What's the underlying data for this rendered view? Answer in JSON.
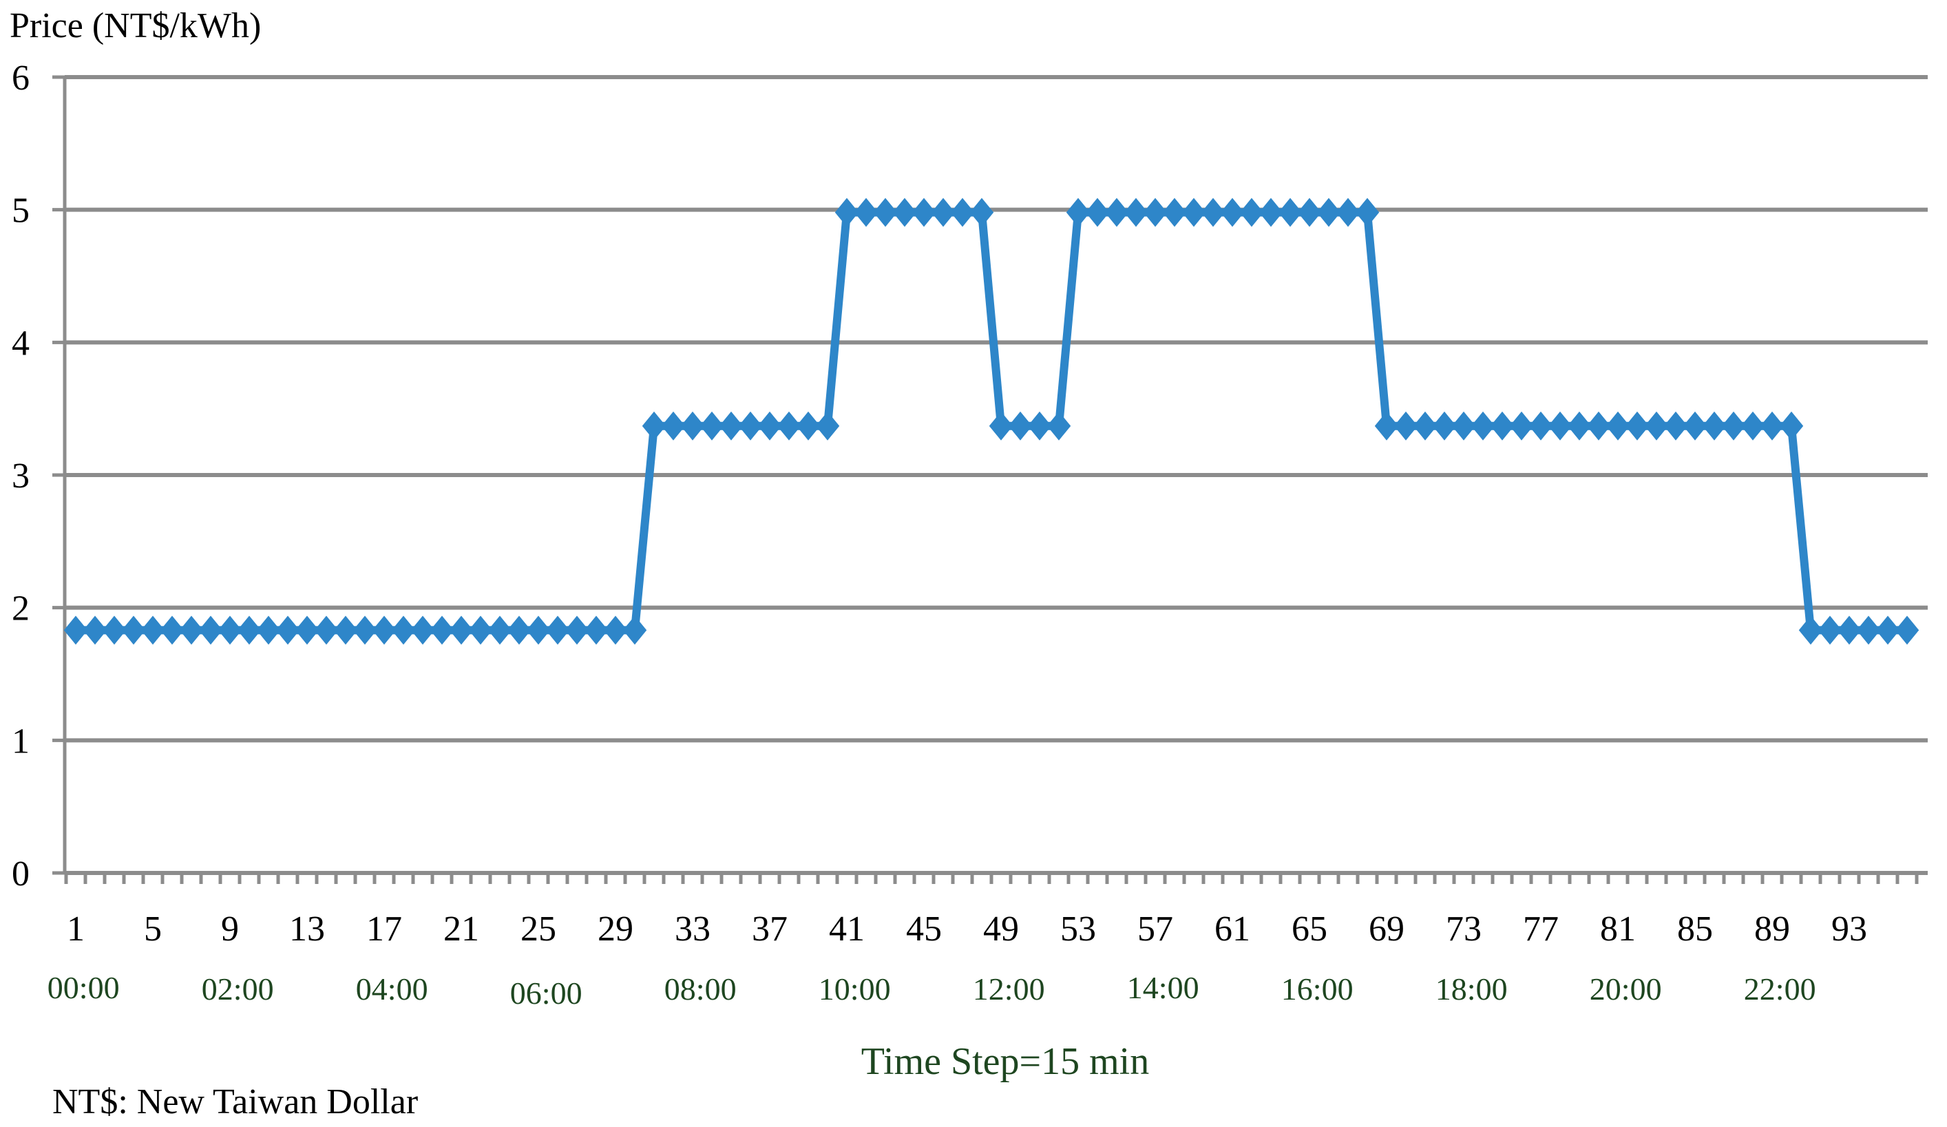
{
  "chart_data": {
    "type": "line",
    "title": "",
    "ylabel": "Price (NT$/kWh)",
    "xlabel": "Time Step=15 min",
    "footnote": "NT$: New Taiwan Dollar",
    "ylim": [
      0,
      6
    ],
    "yticks": [
      0,
      1,
      2,
      3,
      4,
      5,
      6
    ],
    "x_count": 96,
    "x_tick_labels": [
      "1",
      "5",
      "9",
      "13",
      "17",
      "21",
      "25",
      "29",
      "33",
      "37",
      "41",
      "45",
      "49",
      "53",
      "57",
      "61",
      "65",
      "69",
      "73",
      "77",
      "81",
      "85",
      "89",
      "93"
    ],
    "time_labels": [
      "00:00",
      "02:00",
      "04:00",
      "06:00",
      "08:00",
      "10:00",
      "12:00",
      "14:00",
      "16:00",
      "18:00",
      "20:00",
      "22:00"
    ],
    "grid": true,
    "legend": "none",
    "series": [
      {
        "color": "#2E86C9",
        "marker": "diamond",
        "values": [
          1.83,
          1.83,
          1.83,
          1.83,
          1.83,
          1.83,
          1.83,
          1.83,
          1.83,
          1.83,
          1.83,
          1.83,
          1.83,
          1.83,
          1.83,
          1.83,
          1.83,
          1.83,
          1.83,
          1.83,
          1.83,
          1.83,
          1.83,
          1.83,
          1.83,
          1.83,
          1.83,
          1.83,
          1.83,
          1.83,
          3.37,
          3.37,
          3.37,
          3.37,
          3.37,
          3.37,
          3.37,
          3.37,
          3.37,
          3.37,
          4.98,
          4.98,
          4.98,
          4.98,
          4.98,
          4.98,
          4.98,
          4.98,
          3.37,
          3.37,
          3.37,
          3.37,
          4.98,
          4.98,
          4.98,
          4.98,
          4.98,
          4.98,
          4.98,
          4.98,
          4.98,
          4.98,
          4.98,
          4.98,
          4.98,
          4.98,
          4.98,
          4.98,
          3.37,
          3.37,
          3.37,
          3.37,
          3.37,
          3.37,
          3.37,
          3.37,
          3.37,
          3.37,
          3.37,
          3.37,
          3.37,
          3.37,
          3.37,
          3.37,
          3.37,
          3.37,
          3.37,
          3.37,
          3.37,
          3.37,
          1.83,
          1.83,
          1.83,
          1.83,
          1.83,
          1.83
        ]
      }
    ]
  },
  "colors": {
    "grid": "#8C8C8C",
    "axis": "#8C8C8C",
    "text": "#000000",
    "time_text": "#1E4620",
    "xlabel_text": "#1E4620"
  }
}
